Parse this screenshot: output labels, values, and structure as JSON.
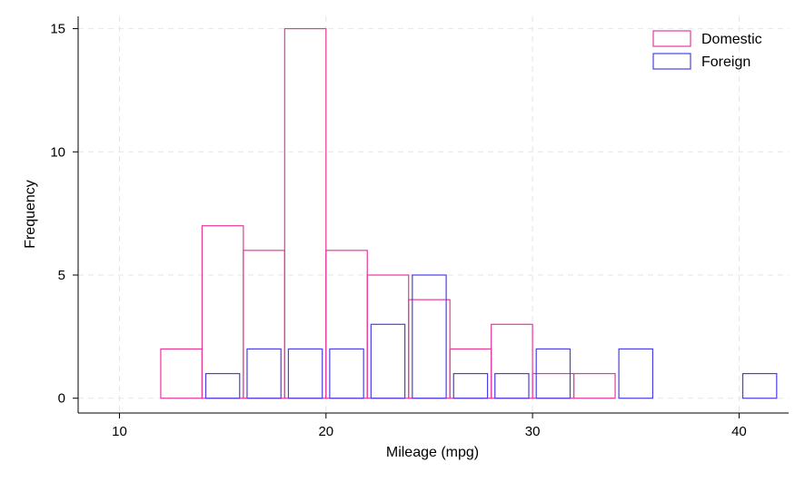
{
  "chart_data": {
    "type": "bar",
    "xlabel": "Mileage (mpg)",
    "ylabel": "Frequency",
    "xlim": [
      8,
      42.4
    ],
    "ylim": [
      -0.6,
      15.5
    ],
    "xticks": [
      10,
      20,
      30,
      40
    ],
    "yticks": [
      0,
      5,
      10,
      15
    ],
    "grid": true,
    "legend_position": "top-right",
    "bin_width": 2,
    "series": [
      {
        "name": "Domestic",
        "color": "#e8399b",
        "bins": [
          {
            "start": 12,
            "count": 2
          },
          {
            "start": 14,
            "count": 7
          },
          {
            "start": 16,
            "count": 6
          },
          {
            "start": 18,
            "count": 15
          },
          {
            "start": 20,
            "count": 6
          },
          {
            "start": 22,
            "count": 5
          },
          {
            "start": 24,
            "count": 4
          },
          {
            "start": 26,
            "count": 2
          },
          {
            "start": 28,
            "count": 3
          },
          {
            "start": 30,
            "count": 1
          },
          {
            "start": 32,
            "count": 1
          }
        ]
      },
      {
        "name": "Foreign",
        "color": "#4a3fe6",
        "bins": [
          {
            "start": 14,
            "count": 1
          },
          {
            "start": 16,
            "count": 2
          },
          {
            "start": 18,
            "count": 2
          },
          {
            "start": 20,
            "count": 2
          },
          {
            "start": 22,
            "count": 3
          },
          {
            "start": 24,
            "count": 5
          },
          {
            "start": 26,
            "count": 1
          },
          {
            "start": 28,
            "count": 1
          },
          {
            "start": 30,
            "count": 2
          },
          {
            "start": 34,
            "count": 2
          },
          {
            "start": 40,
            "count": 1
          }
        ]
      }
    ]
  }
}
